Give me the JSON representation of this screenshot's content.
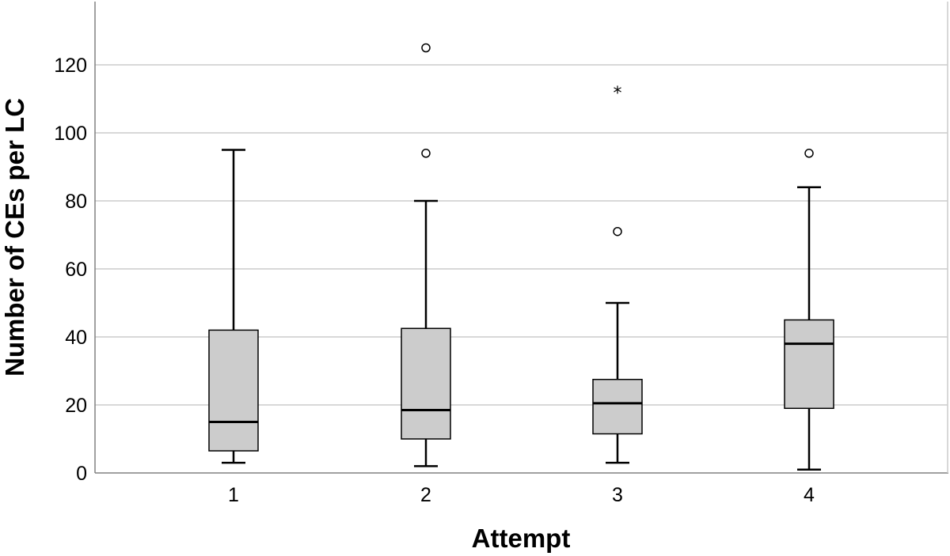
{
  "chart_data": {
    "type": "box",
    "title": "",
    "xlabel": "Attempt",
    "ylabel": "Number of CEs per LC",
    "categories": [
      "1",
      "2",
      "3",
      "4"
    ],
    "ylim": [
      0,
      138
    ],
    "yticks": [
      0,
      20,
      40,
      60,
      80,
      100,
      120
    ],
    "grid": true,
    "colors": {
      "box_fill": "#cccccc",
      "stroke": "#000000",
      "grid": "#cccccc",
      "axis": "#808080"
    },
    "series": [
      {
        "category": "1",
        "whisker_low": 3,
        "q1": 6.5,
        "median": 15,
        "q3": 42,
        "whisker_high": 95,
        "outliers": [],
        "extremes": []
      },
      {
        "category": "2",
        "whisker_low": 2,
        "q1": 10,
        "median": 18.5,
        "q3": 42.5,
        "whisker_high": 80,
        "outliers": [
          94,
          125
        ],
        "extremes": []
      },
      {
        "category": "3",
        "whisker_low": 3,
        "q1": 11.5,
        "median": 20.5,
        "q3": 27.5,
        "whisker_high": 50,
        "outliers": [
          71
        ],
        "extremes": [
          113
        ]
      },
      {
        "category": "4",
        "whisker_low": 1,
        "q1": 19,
        "median": 38,
        "q3": 45,
        "whisker_high": 84,
        "outliers": [
          94
        ],
        "extremes": []
      }
    ],
    "extreme_marker": "*"
  }
}
